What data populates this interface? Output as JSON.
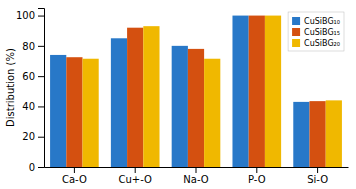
{
  "chart_data": {
    "type": "bar",
    "categories": [
      "Ca-O",
      "Cu+-O",
      "Na-O",
      "P-O",
      "Si-O"
    ],
    "series": [
      {
        "name": "CuSiBG₁₀",
        "color": "#2878C8",
        "values": [
          74,
          85,
          80,
          100,
          43
        ]
      },
      {
        "name": "CuSiBG₁₅",
        "color": "#D45010",
        "values": [
          72.5,
          92,
          78,
          100,
          43.5
        ]
      },
      {
        "name": "CuSiBG₂₀",
        "color": "#F0B800",
        "values": [
          71.5,
          93,
          71.5,
          100,
          44
        ]
      }
    ],
    "ylabel": "Distribution (%)",
    "ylim": [
      0,
      105
    ],
    "yticks": [
      0,
      20,
      40,
      60,
      80,
      100
    ],
    "legend": "upper right"
  }
}
